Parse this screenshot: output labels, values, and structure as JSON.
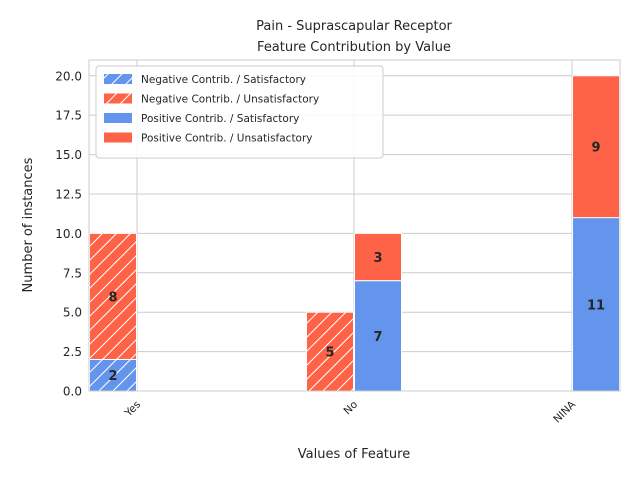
{
  "chart_data": {
    "type": "bar",
    "title_line1": "Pain - Suprascapular Receptor",
    "title_line2": "Feature Contribution by Value",
    "xlabel": "Values of Feature",
    "ylabel": "Number of instances",
    "categories": [
      "Yes",
      "No",
      "NINA"
    ],
    "ylim": [
      0,
      21
    ],
    "yticks": [
      0.0,
      2.5,
      5.0,
      7.5,
      10.0,
      12.5,
      15.0,
      17.5,
      20.0
    ],
    "ytick_labels": [
      "0.0",
      "2.5",
      "5.0",
      "7.5",
      "10.0",
      "12.5",
      "15.0",
      "17.5",
      "20.0"
    ],
    "grid": true,
    "legend_placement": "top-left",
    "colors": {
      "satisfactory": "#6495ED",
      "unsatisfactory": "#FF6347"
    },
    "groups": [
      {
        "name": "Negative Contrib.",
        "hatched": true,
        "segments": [
          {
            "name": "Negative Contrib. / Satisfactory",
            "color": "#6495ED",
            "values": [
              2,
              0,
              0
            ]
          },
          {
            "name": "Negative Contrib. / Unsatisfactory",
            "color": "#FF6347",
            "values": [
              8,
              5,
              0
            ]
          }
        ]
      },
      {
        "name": "Positive Contrib.",
        "hatched": false,
        "segments": [
          {
            "name": "Positive Contrib. / Satisfactory",
            "color": "#6495ED",
            "values": [
              0,
              7,
              11
            ]
          },
          {
            "name": "Positive Contrib. / Unsatisfactory",
            "color": "#FF6347",
            "values": [
              0,
              3,
              9
            ]
          }
        ]
      }
    ],
    "legend": [
      "Negative Contrib. / Satisfactory",
      "Negative Contrib. / Unsatisfactory",
      "Positive Contrib. / Satisfactory",
      "Positive Contrib. / Unsatisfactory"
    ]
  }
}
